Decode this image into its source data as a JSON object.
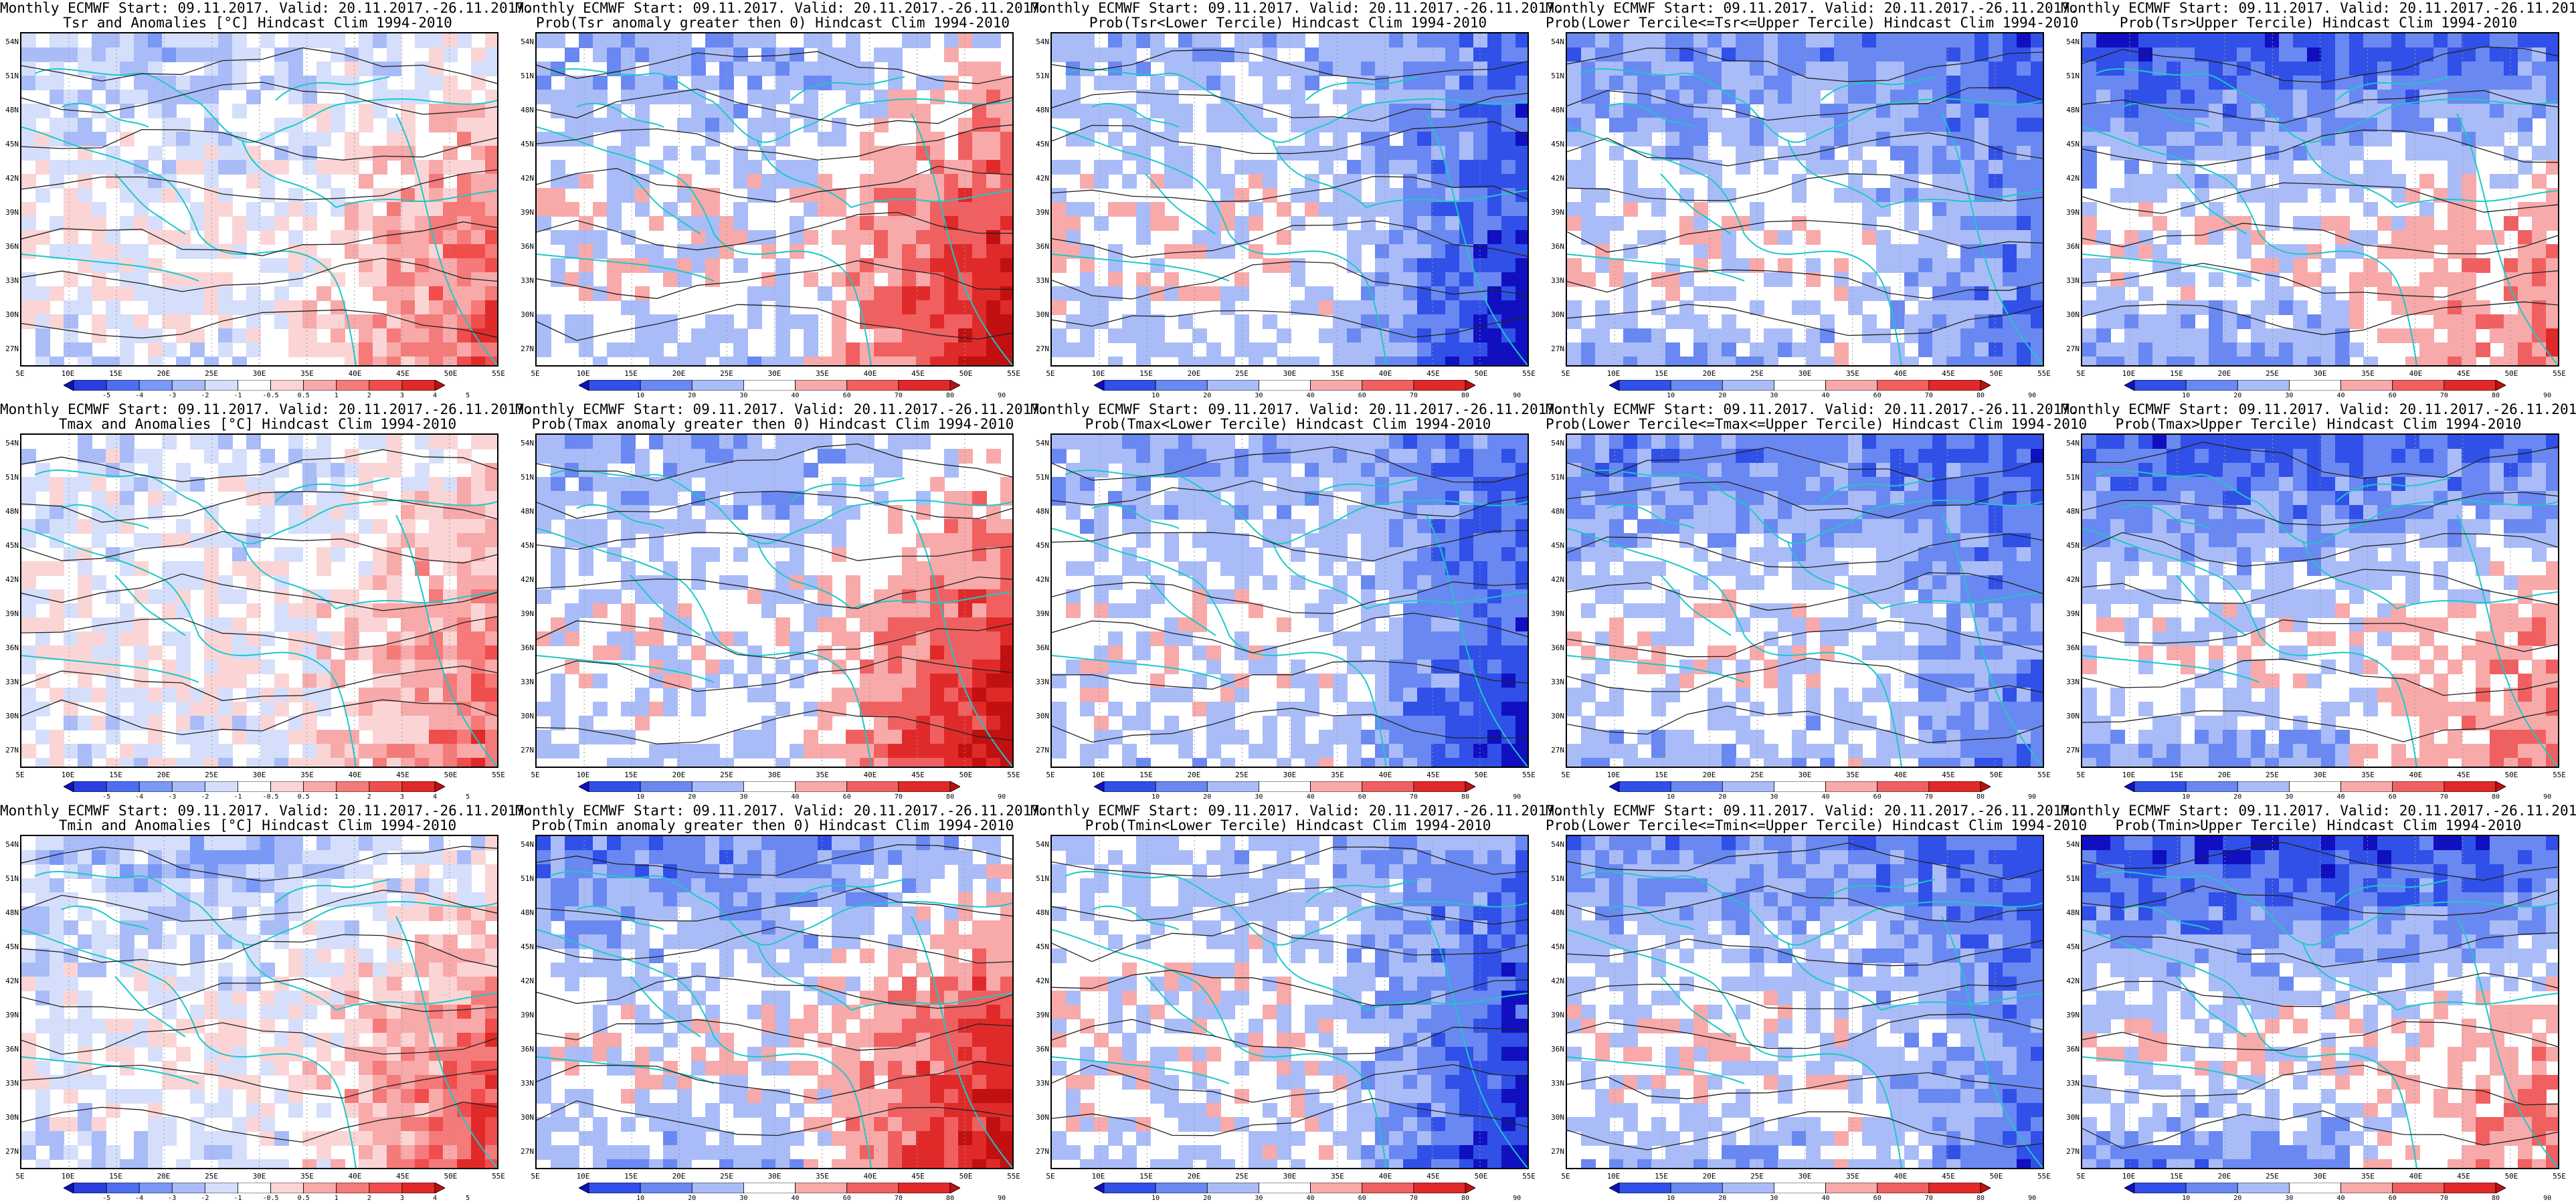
{
  "header_line": "Monthly ECMWF Start: 09.11.2017. Valid: 20.11.2017.-26.11.2017.",
  "lat_labels": [
    "54N",
    "51N",
    "48N",
    "45N",
    "42N",
    "39N",
    "36N",
    "33N",
    "30N",
    "27N"
  ],
  "lon_labels": [
    "5E",
    "10E",
    "15E",
    "20E",
    "25E",
    "30E",
    "35E",
    "40E",
    "45E",
    "50E",
    "55E"
  ],
  "colorbar_anomaly": {
    "ticks": [
      "-5",
      "-4",
      "-3",
      "-2",
      "-1",
      "-0.5",
      "0.5",
      "1",
      "2",
      "3",
      "4",
      "5"
    ],
    "colors": [
      "#1010c0",
      "#2a3ee0",
      "#4d6ef0",
      "#7a98f5",
      "#a9bcf8",
      "#d5dffb",
      "#ffffff",
      "#fbd5d5",
      "#f8a9a9",
      "#f57a7a",
      "#f04d4d",
      "#e02a2a",
      "#c01010"
    ]
  },
  "colorbar_prob": {
    "ticks": [
      "10",
      "20",
      "30",
      "40",
      "60",
      "70",
      "80",
      "90"
    ],
    "colors": [
      "#1010c0",
      "#3050e8",
      "#6a88f2",
      "#a9bcf8",
      "#ffffff",
      "#f8a9a9",
      "#f06060",
      "#e02a2a",
      "#c01010"
    ]
  },
  "panels": [
    {
      "id": "tsr-anom",
      "title": "Tsr and Anomalies [°C] Hindcast Clim 1994-2010",
      "type": "anomaly",
      "warm_east": 0.55,
      "cold_north": 0.25
    },
    {
      "id": "tsr-prob-gt0",
      "title": "Prob(Tsr anomaly greater then 0) Hindcast Clim 1994-2010",
      "type": "prob",
      "warm_east": 0.85,
      "cold_north": 0.35
    },
    {
      "id": "tsr-prob-lower",
      "title": "Prob(Tsr<Lower Tercile) Hindcast Clim 1994-2010",
      "type": "prob",
      "warm_east": -0.9,
      "cold_north": 0.3
    },
    {
      "id": "tsr-prob-middle",
      "title": "Prob(Lower Tercile<=Tsr<=Upper Tercile) Hindcast Clim 1994-2010",
      "type": "prob",
      "warm_east": -0.55,
      "cold_north": 0.55
    },
    {
      "id": "tsr-prob-upper",
      "title": "Prob(Tsr>Upper Tercile) Hindcast Clim 1994-2010",
      "type": "prob",
      "warm_east": 0.35,
      "cold_north": 0.85
    },
    {
      "id": "tmax-anom",
      "title": "Tmax and Anomalies [°C] Hindcast Clim 1994-2010",
      "type": "anomaly",
      "warm_east": 0.5,
      "cold_north": 0.15
    },
    {
      "id": "tmax-prob-gt0",
      "title": "Prob(Tmax anomaly greater then 0) Hindcast Clim 1994-2010",
      "type": "prob",
      "warm_east": 0.8,
      "cold_north": 0.35
    },
    {
      "id": "tmax-prob-lower",
      "title": "Prob(Tmax<Lower Tercile) Hindcast Clim 1994-2010",
      "type": "prob",
      "warm_east": -0.85,
      "cold_north": 0.35
    },
    {
      "id": "tmax-prob-middle",
      "title": "Prob(Lower Tercile<=Tmax<=Upper Tercile) Hindcast Clim 1994-2010",
      "type": "prob",
      "warm_east": -0.5,
      "cold_north": 0.6
    },
    {
      "id": "tmax-prob-upper",
      "title": "Prob(Tmax>Upper Tercile) Hindcast Clim 1994-2010",
      "type": "prob",
      "warm_east": 0.3,
      "cold_north": 0.8
    },
    {
      "id": "tmin-anom",
      "title": "Tmin and Anomalies [°C] Hindcast Clim 1994-2010",
      "type": "anomaly",
      "warm_east": 0.6,
      "cold_north": 0.35
    },
    {
      "id": "tmin-prob-gt0",
      "title": "Prob(Tmin anomaly greater then 0) Hindcast Clim 1994-2010",
      "type": "prob",
      "warm_east": 0.8,
      "cold_north": 0.55
    },
    {
      "id": "tmin-prob-lower",
      "title": "Prob(Tmin<Lower Tercile) Hindcast Clim 1994-2010",
      "type": "prob",
      "warm_east": -0.9,
      "cold_north": 0.2
    },
    {
      "id": "tmin-prob-middle",
      "title": "Prob(Lower Tercile<=Tmin<=Upper Tercile) Hindcast Clim 1994-2010",
      "type": "prob",
      "warm_east": -0.6,
      "cold_north": 0.55
    },
    {
      "id": "tmin-prob-upper",
      "title": "Prob(Tmin>Upper Tercile) Hindcast Clim 1994-2010",
      "type": "prob",
      "warm_east": 0.25,
      "cold_north": 0.9
    }
  ]
}
